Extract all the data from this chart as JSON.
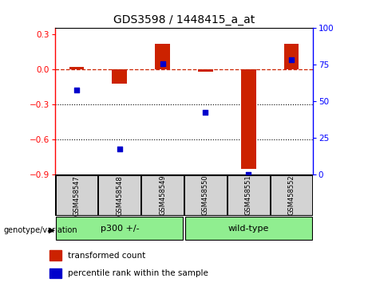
{
  "title": "GDS3598 / 1448415_a_at",
  "samples": [
    "GSM458547",
    "GSM458548",
    "GSM458549",
    "GSM458550",
    "GSM458551",
    "GSM458552"
  ],
  "red_bars": [
    0.02,
    -0.12,
    0.22,
    -0.02,
    -0.85,
    0.22
  ],
  "blue_dots_y": [
    -0.18,
    -0.68,
    0.05,
    -0.37,
    -0.895,
    0.08
  ],
  "ylim_left": [
    -0.9,
    0.35
  ],
  "ylim_right": [
    0,
    100
  ],
  "yticks_left": [
    -0.9,
    -0.6,
    -0.3,
    0.0,
    0.3
  ],
  "yticks_right": [
    0,
    25,
    50,
    75,
    100
  ],
  "group1_label": "p300 +/-",
  "group2_label": "wild-type",
  "group1_color": "#90EE90",
  "group2_color": "#90EE90",
  "bar_color": "#CC2200",
  "dot_color": "#0000CC",
  "genotype_label": "genotype/variation",
  "legend_red": "transformed count",
  "legend_blue": "percentile rank within the sample",
  "hline_y": 0.0,
  "dotted_lines": [
    -0.3,
    -0.6
  ],
  "bar_width": 0.35,
  "dot_size": 18
}
